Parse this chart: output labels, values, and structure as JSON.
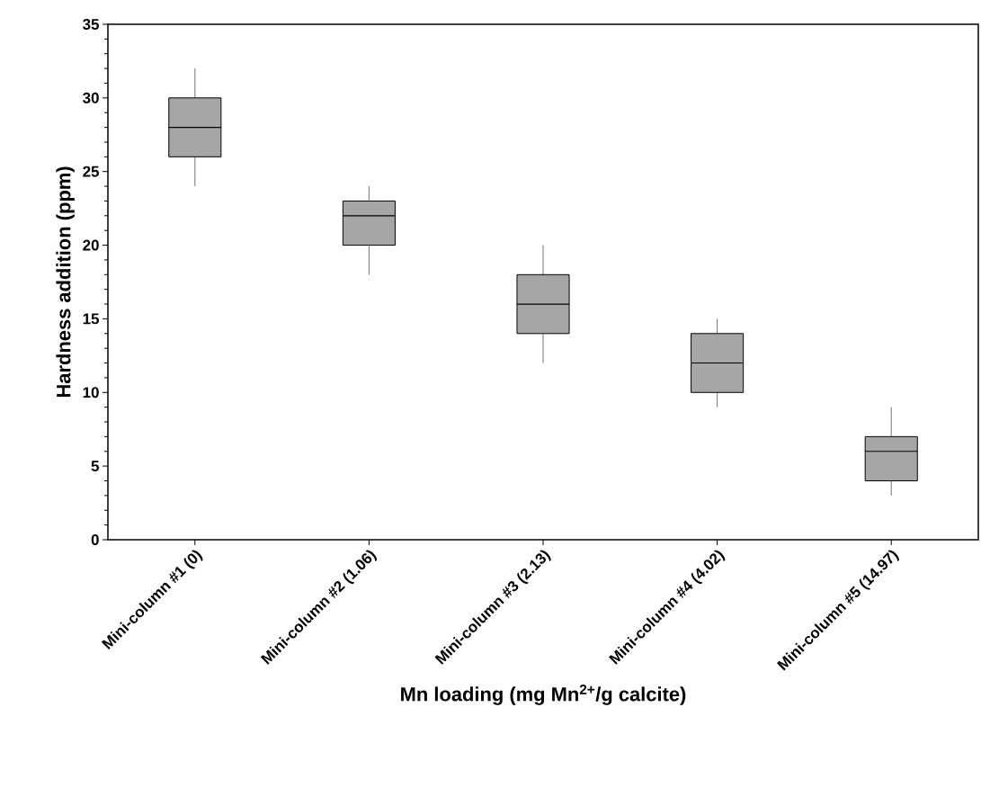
{
  "chart_data": {
    "type": "box",
    "xlabel": "Mn loading (mg Mn$^{2+}$/g calcite)",
    "ylabel": "Hardness addition (ppm)",
    "categories": [
      "Mini-column #1 (0)",
      "Mini-column #2 (1.06)",
      "Mini-column #3 (2.13)",
      "Mini-column #4 (4.02)",
      "Mini-column #5 (14.97)"
    ],
    "series": [
      {
        "color": "#a6a6a6",
        "boxes": [
          {
            "low": 24,
            "q1": 26,
            "median": 28,
            "q3": 30,
            "high": 32
          },
          {
            "low": 18,
            "q1": 20,
            "median": 22,
            "q3": 23,
            "high": 24
          },
          {
            "low": 12,
            "q1": 14,
            "median": 16,
            "q3": 18,
            "high": 20
          },
          {
            "low": 9,
            "q1": 10,
            "median": 12,
            "q3": 14,
            "high": 15
          },
          {
            "low": 3,
            "q1": 4,
            "median": 6,
            "q3": 7,
            "high": 9
          }
        ]
      }
    ],
    "ylim": [
      0,
      35
    ],
    "yticks": [
      0,
      5,
      10,
      15,
      20,
      25,
      30,
      35
    ]
  }
}
